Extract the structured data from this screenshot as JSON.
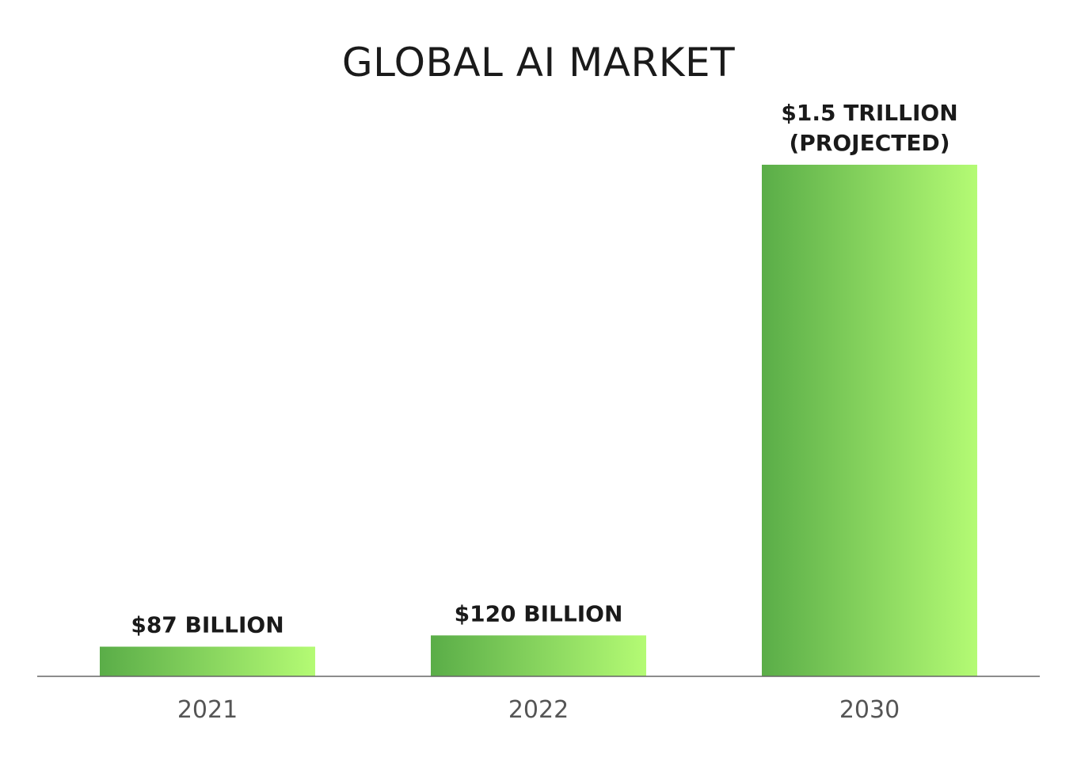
{
  "chart_data": {
    "type": "bar",
    "title": "GLOBAL AI MARKET",
    "xlabel": "",
    "ylabel": "",
    "unit": "billion USD",
    "categories": [
      "2021",
      "2022",
      "2030"
    ],
    "values": [
      87,
      120,
      1500
    ],
    "data_labels": [
      [
        "$87 BILLION"
      ],
      [
        "$120 BILLION"
      ],
      [
        "$1.5 TRILLION",
        "(PROJECTED)"
      ]
    ],
    "grid": false,
    "legend": "none",
    "colors": {
      "bar_gradient_start": "#5aad48",
      "bar_gradient_end": "#b4fb74",
      "axis": "#666666",
      "title": "#1a1a1a",
      "tick": "#555555"
    }
  }
}
